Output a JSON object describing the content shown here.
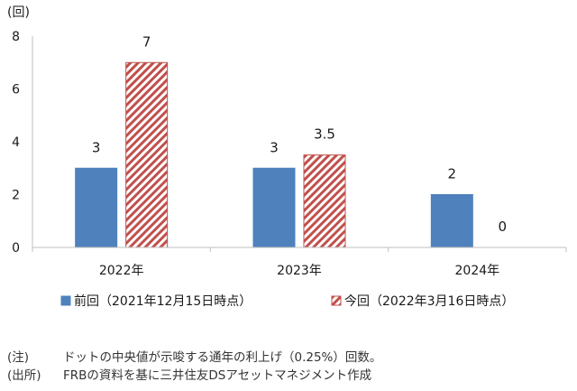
{
  "chart_data": {
    "type": "bar",
    "y_unit_label": "(回)",
    "categories": [
      "2022年",
      "2023年",
      "2024年"
    ],
    "series": [
      {
        "name": "前回（2021年12月15日時点）",
        "values": [
          3,
          3,
          2
        ],
        "data_labels": [
          "3",
          "3",
          "2"
        ],
        "color": "#4f81bd",
        "pattern": "solid"
      },
      {
        "name": "今回（2022年3月16日時点）",
        "values": [
          7,
          3.5,
          0
        ],
        "data_labels": [
          "7",
          "3.5",
          "0"
        ],
        "color": "#c0504d",
        "pattern": "diagonal-stripes"
      }
    ],
    "ylim": [
      0,
      8
    ],
    "yticks": [
      "0",
      "2",
      "4",
      "6",
      "8"
    ],
    "grid": false,
    "legend_position": "bottom"
  },
  "notes": [
    {
      "label": "(注)",
      "text": "ドットの中央値が示唆する通年の利上げ（0.25%）回数。"
    },
    {
      "label": "(出所)",
      "text": "FRBの資料を基に三井住友DSアセットマネジメント作成"
    }
  ]
}
